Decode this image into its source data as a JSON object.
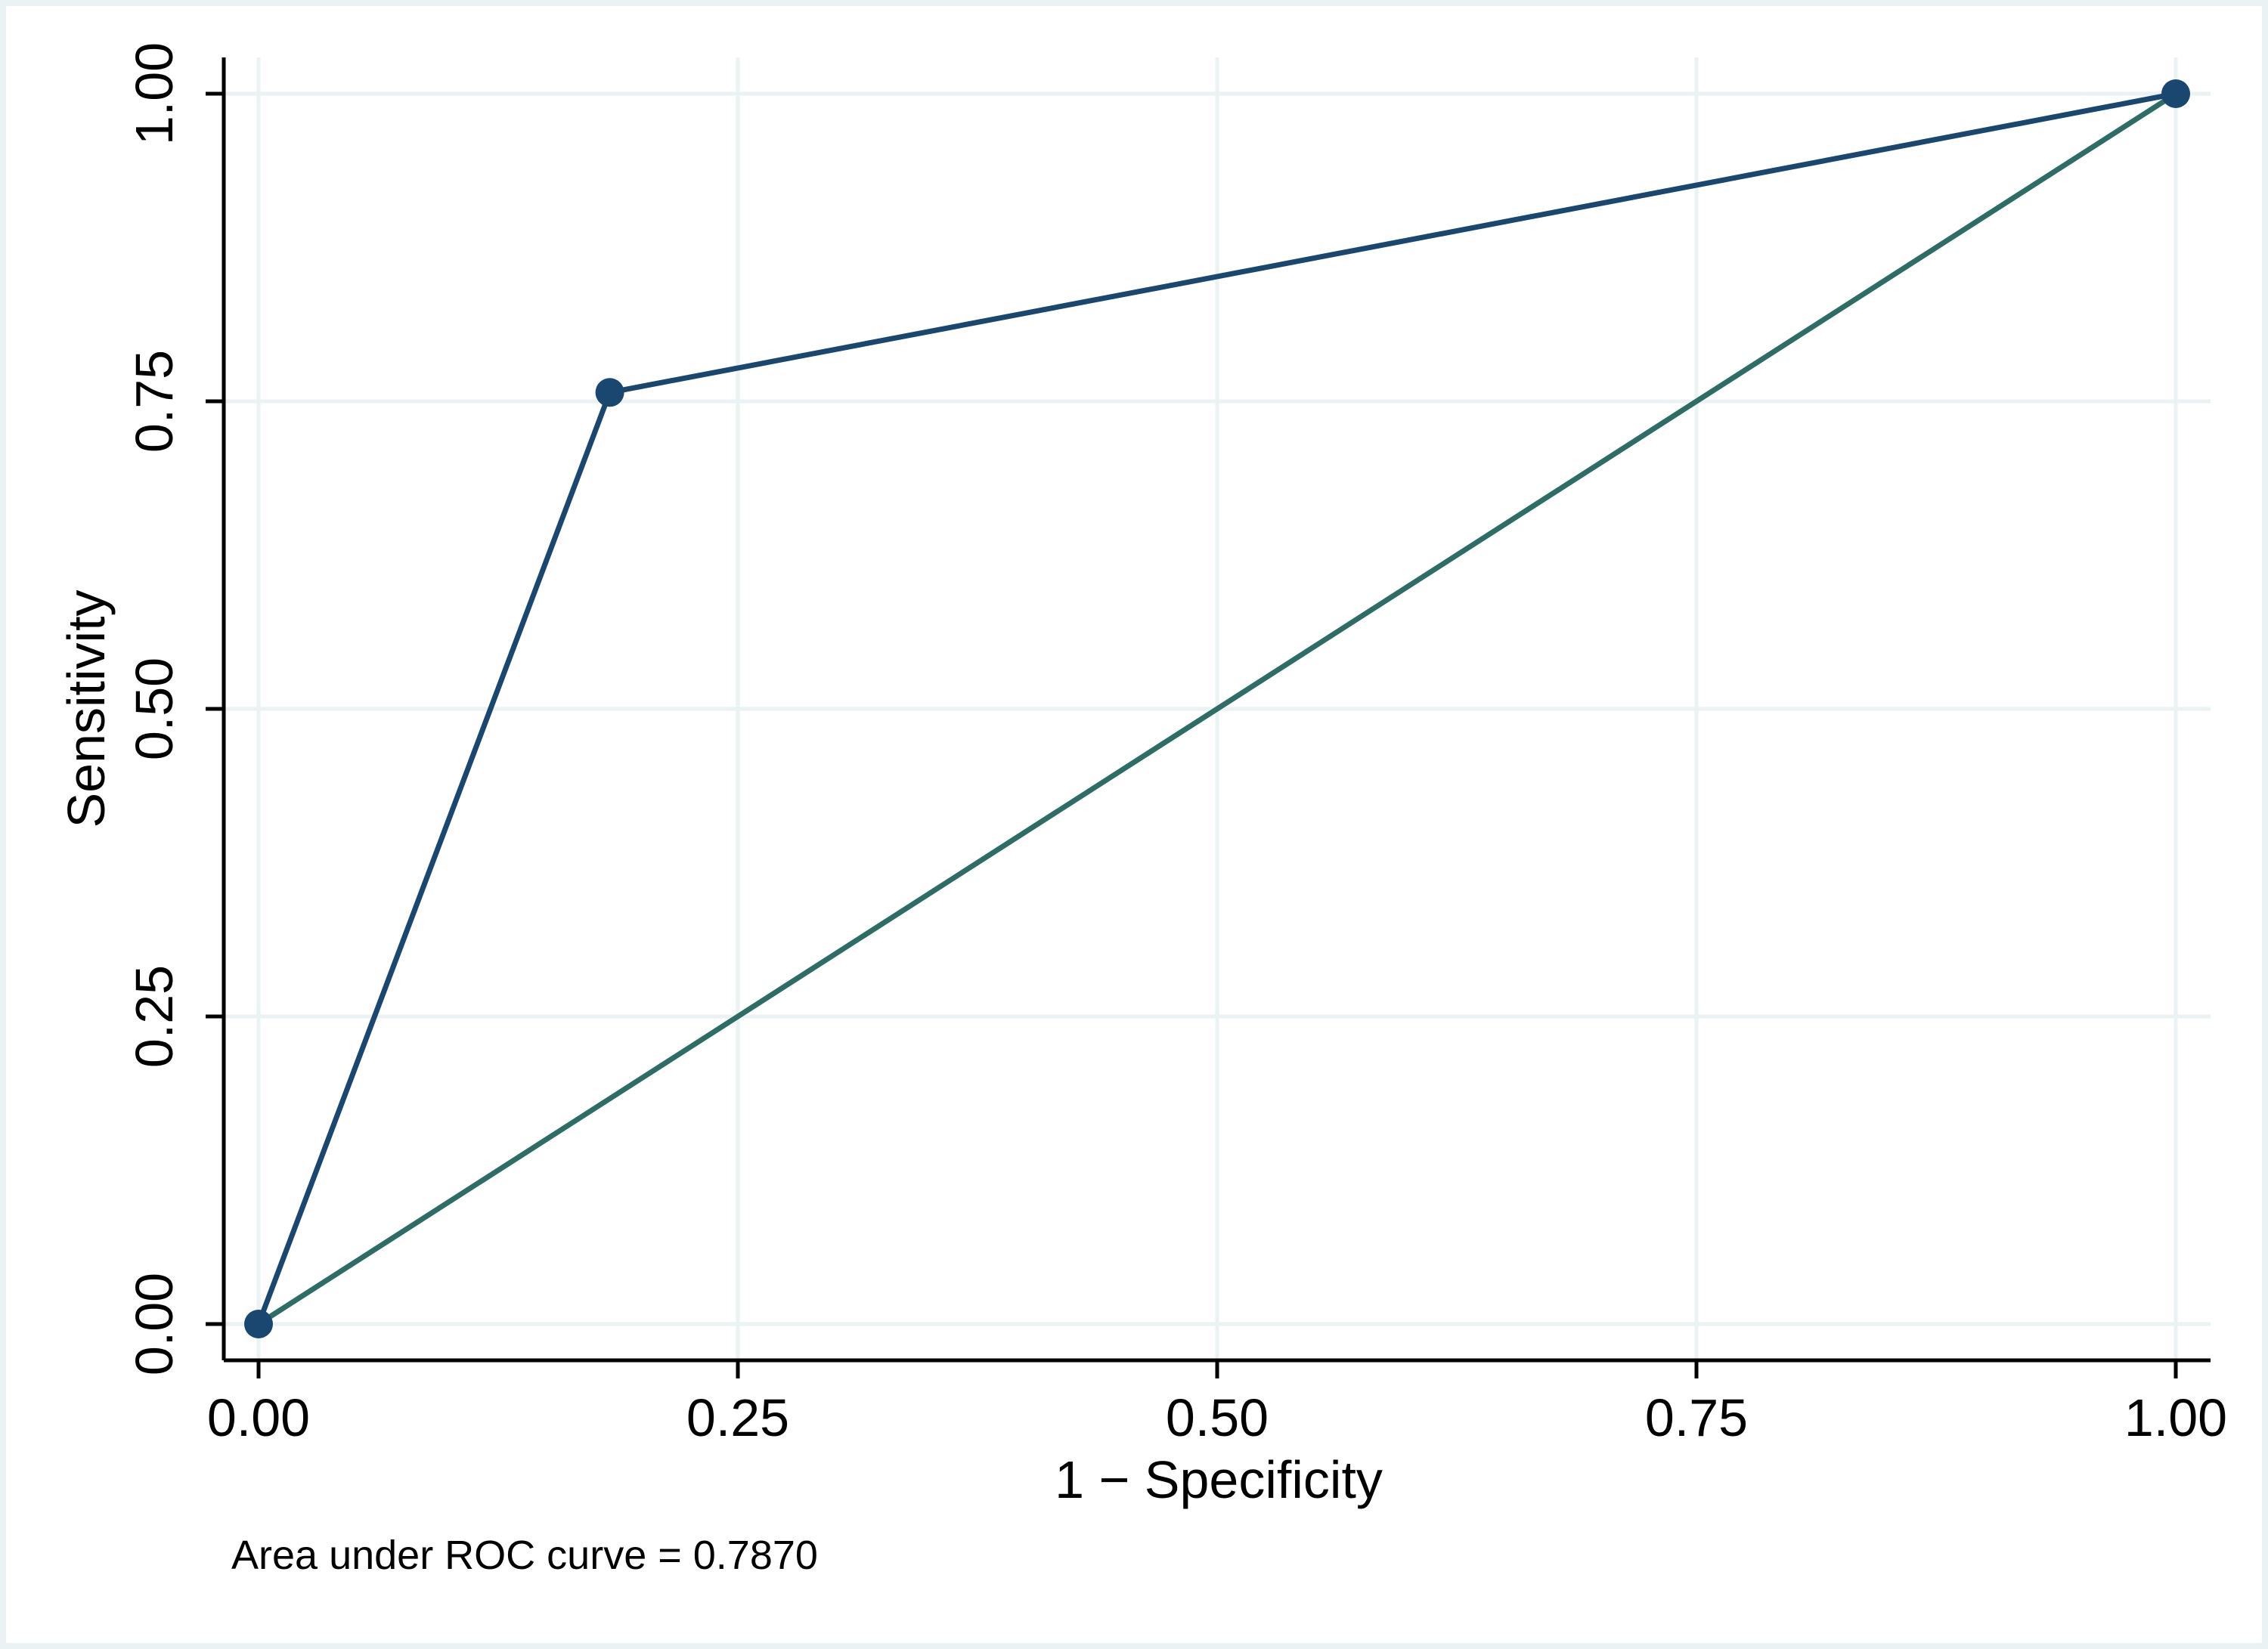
{
  "chart_data": {
    "type": "line",
    "title": "",
    "xlabel": "1 − Specificity",
    "ylabel": "Sensitivity",
    "xlim": [
      0,
      1
    ],
    "ylim": [
      0,
      1
    ],
    "grid": true,
    "x_ticks": [
      "0.00",
      "0.25",
      "0.50",
      "0.75",
      "1.00"
    ],
    "y_ticks": [
      "0.00",
      "0.25",
      "0.50",
      "0.75",
      "1.00"
    ],
    "series": [
      {
        "x": [
          0.0,
          0.1832,
          1.0
        ],
        "y": [
          0.0,
          0.7572,
          1.0
        ],
        "color": "#1a476f",
        "markers": true
      },
      {
        "x": [
          0.0,
          1.0
        ],
        "y": [
          0.0,
          1.0
        ],
        "color": "#2d6d66",
        "markers": false
      }
    ],
    "note": "Area under ROC curve = 0.7870"
  },
  "colors": {
    "outer_background": "#eaf2f3",
    "plot_background": "#ffffff",
    "grid": "#eaf2f3",
    "axis": "#000000"
  }
}
